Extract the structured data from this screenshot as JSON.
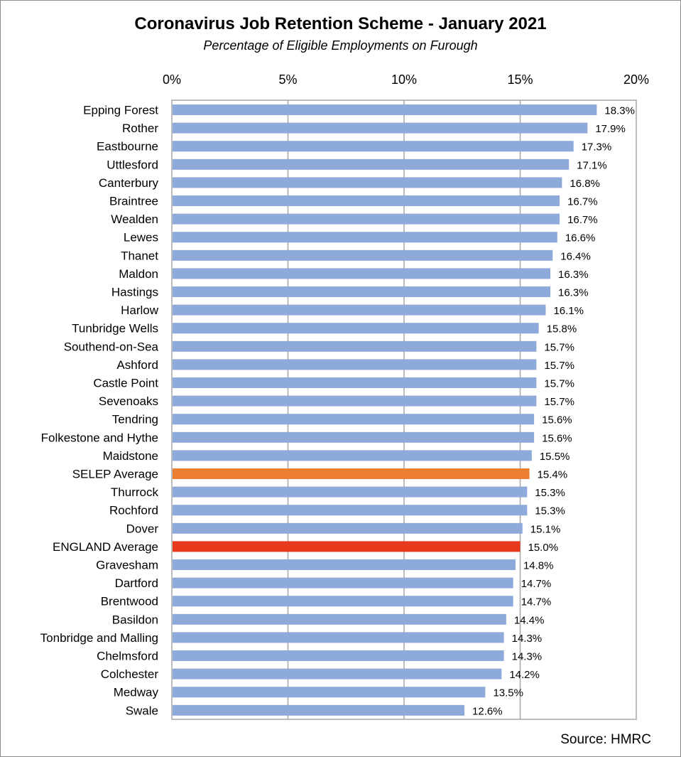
{
  "chart_data": {
    "type": "bar",
    "orientation": "horizontal",
    "title": "Coronavirus Job Retention Scheme - January 2021",
    "subtitle": "Percentage of Eligible Employments on Furough",
    "source": "Source: HMRC",
    "x_ticks": [
      "0%",
      "5%",
      "10%",
      "15%",
      "20%"
    ],
    "x_tick_values": [
      0,
      5,
      10,
      15,
      20
    ],
    "xlim": [
      0,
      20
    ],
    "grid": "vertical",
    "colors": {
      "default": "#8eaadb",
      "selep": "#ed7d31",
      "england": "#e8391c"
    },
    "categories": [
      "Epping Forest",
      "Rother",
      "Eastbourne",
      "Uttlesford",
      "Canterbury",
      "Braintree",
      "Wealden",
      "Lewes",
      "Thanet",
      "Maldon",
      "Hastings",
      "Harlow",
      "Tunbridge Wells",
      "Southend-on-Sea",
      "Ashford",
      "Castle Point",
      "Sevenoaks",
      "Tendring",
      "Folkestone and Hythe",
      "Maidstone",
      "SELEP Average",
      "Thurrock",
      "Rochford",
      "Dover",
      "ENGLAND Average",
      "Gravesham",
      "Dartford",
      "Brentwood",
      "Basildon",
      "Tonbridge and Malling",
      "Chelmsford",
      "Colchester",
      "Medway",
      "Swale"
    ],
    "values": [
      18.3,
      17.9,
      17.3,
      17.1,
      16.8,
      16.7,
      16.7,
      16.6,
      16.4,
      16.3,
      16.3,
      16.1,
      15.8,
      15.7,
      15.7,
      15.7,
      15.7,
      15.6,
      15.6,
      15.5,
      15.4,
      15.3,
      15.3,
      15.1,
      15.0,
      14.8,
      14.7,
      14.7,
      14.4,
      14.3,
      14.3,
      14.2,
      13.5,
      12.6
    ],
    "value_labels": [
      "18.3%",
      "17.9%",
      "17.3%",
      "17.1%",
      "16.8%",
      "16.7%",
      "16.7%",
      "16.6%",
      "16.4%",
      "16.3%",
      "16.3%",
      "16.1%",
      "15.8%",
      "15.7%",
      "15.7%",
      "15.7%",
      "15.7%",
      "15.6%",
      "15.6%",
      "15.5%",
      "15.4%",
      "15.3%",
      "15.3%",
      "15.1%",
      "15.0%",
      "14.8%",
      "14.7%",
      "14.7%",
      "14.4%",
      "14.3%",
      "14.3%",
      "14.2%",
      "13.5%",
      "12.6%"
    ],
    "highlight": {
      "SELEP Average": "selep",
      "ENGLAND Average": "england"
    }
  }
}
